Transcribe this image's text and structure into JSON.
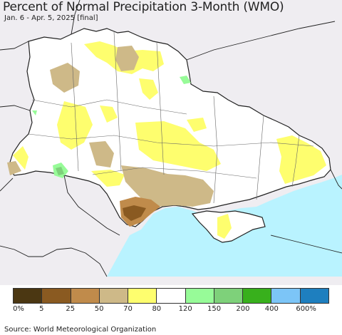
{
  "title": "Percent of Normal Precipitation 3-Month (WMO)",
  "subtitle": "Jan. 6 - Apr. 5, 2025 [final]",
  "source": "Source: World Meteorological Organization",
  "colors": {
    "background_land": "#efedf1",
    "country_white": "#ffffff",
    "sea": "#b9f3ff",
    "border": "#222222",
    "oblast_border": "#666666"
  },
  "legend": {
    "swatches": [
      {
        "color": "#4b3712",
        "range": "0-5"
      },
      {
        "color": "#8a5a21",
        "range": "5-25"
      },
      {
        "color": "#c08b4b",
        "range": "25-50"
      },
      {
        "color": "#ceb988",
        "range": "50-70"
      },
      {
        "color": "#fefe6e",
        "range": "70-80"
      },
      {
        "color": "#ffffff",
        "range": "80-120"
      },
      {
        "color": "#97fb98",
        "range": "120-150"
      },
      {
        "color": "#7ed17a",
        "range": "150-200"
      },
      {
        "color": "#38b01c",
        "range": "200-400"
      },
      {
        "color": "#7cc5f7",
        "range": "400-600"
      },
      {
        "color": "#1e7fbf",
        "range": "600%+"
      }
    ],
    "labels": [
      "0%",
      "5",
      "25",
      "50",
      "70",
      "80",
      "120",
      "150",
      "200",
      "400",
      "600%"
    ]
  }
}
